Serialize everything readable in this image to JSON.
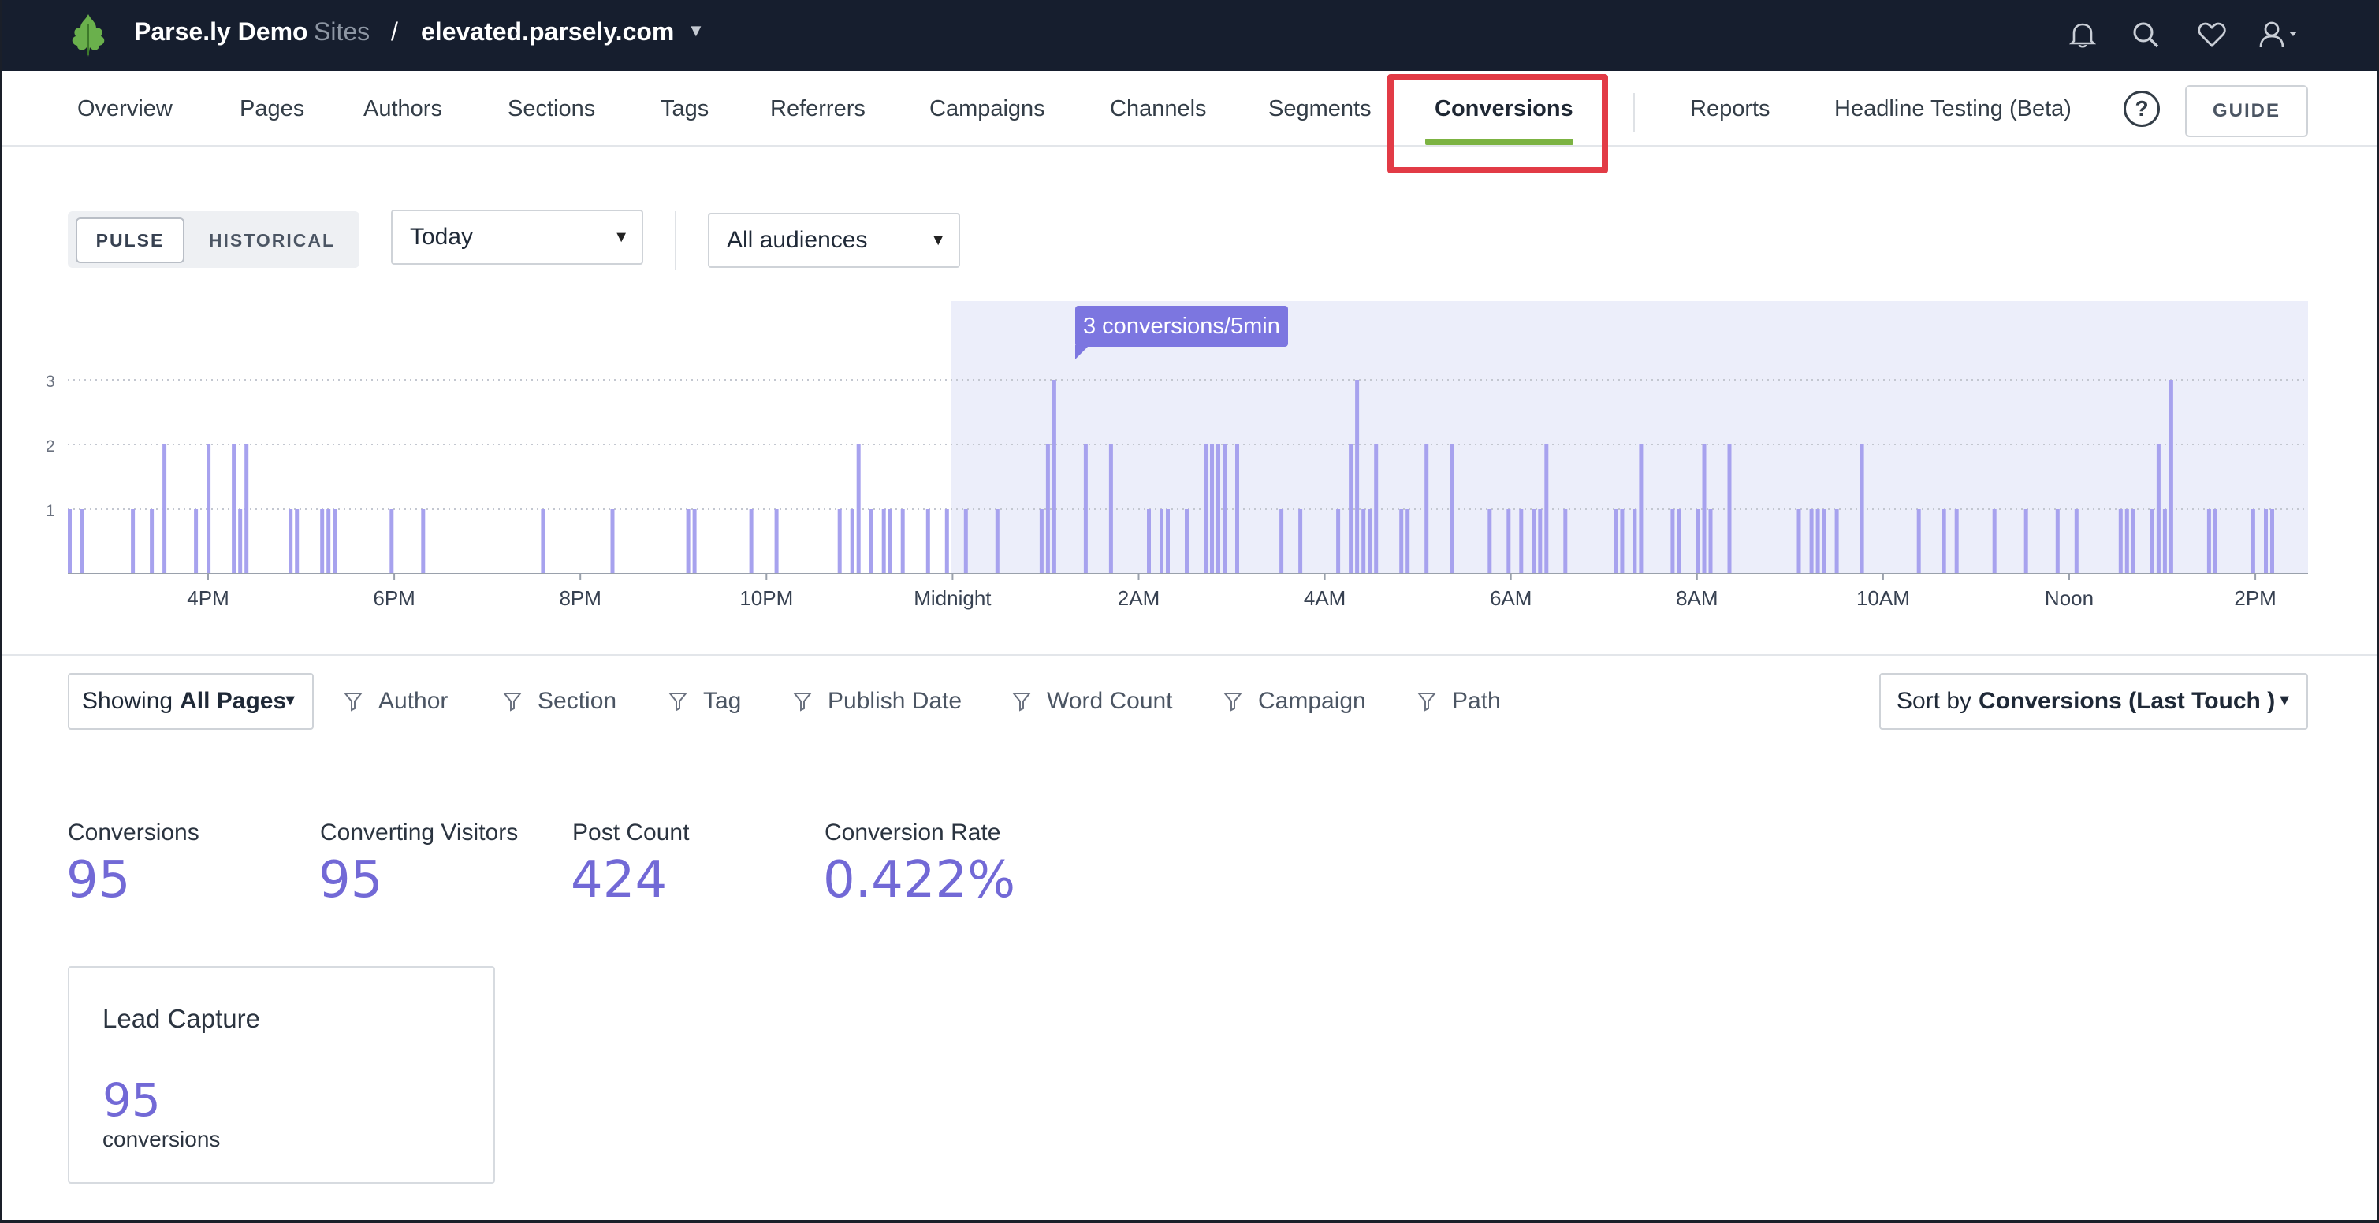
{
  "header": {
    "brand": "Parse.ly Demo",
    "brand_sub": "Sites",
    "separator": "/",
    "site": "elevated.parsely.com",
    "icons": [
      "bell-icon",
      "search-icon",
      "heart-icon",
      "user-icon"
    ]
  },
  "nav": {
    "items": [
      "Overview",
      "Pages",
      "Authors",
      "Sections",
      "Tags",
      "Referrers",
      "Campaigns",
      "Channels",
      "Segments",
      "Conversions",
      "Reports",
      "Headline Testing (Beta)"
    ],
    "active": "Conversions",
    "help": "?",
    "guide": "GUIDE",
    "accent_color": "#7cb342",
    "highlight_color": "#e23b46"
  },
  "controls": {
    "pulse": "PULSE",
    "historical": "HISTORICAL",
    "range": "Today",
    "audience": "All audiences"
  },
  "chart_data": {
    "type": "bar",
    "y_ticks": [
      "1",
      "2",
      "3"
    ],
    "ylim": [
      0,
      3
    ],
    "x_ticks": [
      "4PM",
      "6PM",
      "8PM",
      "10PM",
      "Midnight",
      "2AM",
      "4AM",
      "6AM",
      "8AM",
      "10AM",
      "Noon",
      "2PM"
    ],
    "tooltip": "3 conversions/5min",
    "bar_color": "#a7a2ee",
    "today_shade_color": "#eceefa",
    "grid": true,
    "values_per_interval_from_start": [
      1,
      0,
      1,
      0,
      0,
      0,
      0,
      0,
      0,
      0,
      1,
      0,
      0,
      1,
      0,
      2,
      0,
      0,
      0,
      0,
      1,
      0,
      2,
      0,
      0,
      0,
      2,
      1,
      2,
      0,
      0,
      0,
      0,
      0,
      0,
      1,
      1,
      0,
      0,
      0,
      1,
      1,
      1,
      0,
      0,
      0,
      0,
      0,
      0,
      0,
      0,
      1,
      0,
      0,
      0,
      0,
      1,
      0,
      0,
      0,
      0,
      0,
      0,
      0,
      0,
      0,
      0,
      0,
      0,
      0,
      0,
      0,
      0,
      0,
      0,
      1,
      0,
      0,
      0,
      0,
      0,
      0,
      0,
      0,
      0,
      0,
      1,
      0,
      0,
      0,
      0,
      0,
      0,
      0,
      0,
      0,
      0,
      0,
      1,
      1,
      0,
      0,
      0,
      0,
      0,
      0,
      0,
      0,
      1,
      0,
      0,
      0,
      1,
      0,
      0,
      0,
      0,
      0,
      0,
      0,
      0,
      0,
      1,
      0,
      1,
      2,
      0,
      1,
      0,
      1,
      1,
      0,
      1,
      0,
      0,
      0,
      1,
      0,
      0,
      1,
      0,
      0,
      1,
      0,
      0,
      0,
      0,
      1,
      0,
      0,
      0,
      0,
      0,
      0,
      1,
      2,
      3,
      0,
      0,
      0,
      0,
      2,
      0,
      0,
      0,
      2,
      0,
      0,
      0,
      0,
      0,
      1,
      0,
      1,
      1,
      0,
      0,
      1,
      0,
      0,
      2,
      2,
      2,
      2,
      0,
      2,
      0,
      0,
      0,
      0,
      0,
      0,
      1,
      0,
      0,
      1,
      0,
      0,
      0,
      0,
      0,
      1,
      0,
      2,
      3,
      1,
      1,
      2,
      0,
      0,
      0,
      1,
      1,
      0,
      0,
      2,
      0,
      0,
      0,
      2,
      0,
      0,
      0,
      0,
      0,
      1,
      0,
      0,
      1,
      0,
      1,
      0,
      1,
      1,
      2,
      0,
      0,
      1,
      0,
      0,
      0,
      0,
      0,
      0,
      0,
      1,
      1,
      0,
      1,
      2,
      0,
      0,
      0,
      0,
      1,
      1,
      0,
      0,
      1,
      2,
      1,
      0,
      0,
      2,
      0,
      0,
      0,
      0,
      0,
      0,
      0,
      0,
      0,
      0,
      1,
      0,
      1,
      1,
      1,
      0,
      1,
      0,
      0,
      0,
      2,
      0,
      0,
      0,
      0,
      0,
      0,
      0,
      0,
      1,
      0,
      0,
      0,
      1,
      0,
      1,
      0,
      0,
      0,
      0,
      0,
      1,
      0,
      0,
      0,
      0,
      1,
      0,
      0,
      0,
      0,
      1,
      0,
      0,
      1,
      0,
      0,
      0,
      0,
      0,
      0,
      1,
      1,
      1,
      0,
      0,
      1,
      2,
      1,
      3,
      0,
      0,
      0,
      0,
      0,
      1,
      1,
      0,
      0,
      0,
      0,
      0,
      1,
      0,
      1,
      1,
      0,
      0,
      0,
      0,
      0
    ]
  },
  "filters": {
    "showing_prefix": "Showing",
    "showing_value": "All Pages",
    "items": [
      "Author",
      "Section",
      "Tag",
      "Publish Date",
      "Word Count",
      "Campaign",
      "Path"
    ],
    "sort_prefix": "Sort by",
    "sort_value": "Conversions (Last Touch )"
  },
  "metrics": [
    {
      "label": "Conversions",
      "value": "95"
    },
    {
      "label": "Converting Visitors",
      "value": "95"
    },
    {
      "label": "Post Count",
      "value": "424"
    },
    {
      "label": "Conversion Rate",
      "value": "0.422%"
    }
  ],
  "card": {
    "title": "Lead Capture",
    "value": "95",
    "unit": "conversions"
  }
}
